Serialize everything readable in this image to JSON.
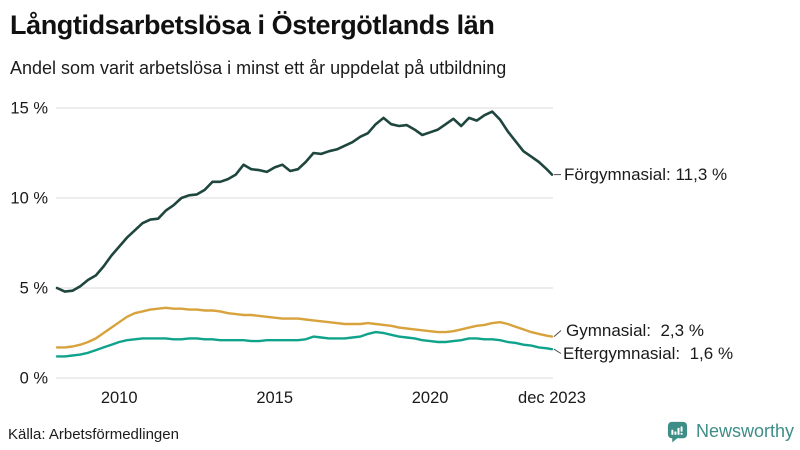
{
  "page": {
    "title": "Långtidsarbetslösa i Östergötlands län",
    "subtitle": "Andel som varit arbetslösa i minst ett år uppdelat på utbildning",
    "source": "Källa: Arbetsförmedlingen",
    "brand": {
      "name": "Newsworthy",
      "icon": "newsworthy-speech-bubble-bar-chart-icon",
      "color": "#3E8D87"
    }
  },
  "colors": {
    "forgymnasial": "#1F463E",
    "gymnasial": "#D8A23C",
    "eftergymnasial": "#10A38C",
    "grid": "#DBDBDB",
    "text": "#1A1A1A",
    "connector": "#4D4D4D"
  },
  "chart_data": {
    "type": "line",
    "title": "Långtidsarbetslösa i Östergötlands län",
    "subtitle": "Andel som varit arbetslösa i minst ett år uppdelat på utbildning",
    "x_unit": "year (quarterly samples of monthly series, last point = dec 2023)",
    "xlim": [
      2008,
      2023.92
    ],
    "ylim": [
      0,
      15.9
    ],
    "grid": "horizontal-only",
    "legend_position": "end-of-line-labels-right",
    "yticks": [
      {
        "v": 0,
        "label": "0 %"
      },
      {
        "v": 5,
        "label": "5 %"
      },
      {
        "v": 10,
        "label": "10 %"
      },
      {
        "v": 15,
        "label": "15 %"
      }
    ],
    "xticks": [
      {
        "v": 2010,
        "label": "2010"
      },
      {
        "v": 2015,
        "label": "2015"
      },
      {
        "v": 2020,
        "label": "2020"
      },
      {
        "v": 2023.92,
        "label": "dec 2023"
      }
    ],
    "x": [
      2008,
      2008.25,
      2008.5,
      2008.75,
      2009,
      2009.25,
      2009.5,
      2009.75,
      2010,
      2010.25,
      2010.5,
      2010.75,
      2011,
      2011.25,
      2011.5,
      2011.75,
      2012,
      2012.25,
      2012.5,
      2012.75,
      2013,
      2013.25,
      2013.5,
      2013.75,
      2014,
      2014.25,
      2014.5,
      2014.75,
      2015,
      2015.25,
      2015.5,
      2015.75,
      2016,
      2016.25,
      2016.5,
      2016.75,
      2017,
      2017.25,
      2017.5,
      2017.75,
      2018,
      2018.25,
      2018.5,
      2018.75,
      2019,
      2019.25,
      2019.5,
      2019.75,
      2020,
      2020.25,
      2020.5,
      2020.75,
      2021,
      2021.25,
      2021.5,
      2021.75,
      2022,
      2022.25,
      2022.5,
      2022.75,
      2023,
      2023.25,
      2023.5,
      2023.75,
      2023.92
    ],
    "series": [
      {
        "name": "Förgymnasial",
        "end_label": "Förgymnasial: 11,3 %",
        "end_value": "11,3 %",
        "color": "#1F463E",
        "values": [
          5.0,
          4.8,
          4.85,
          5.1,
          5.45,
          5.7,
          6.2,
          6.8,
          7.3,
          7.8,
          8.2,
          8.6,
          8.8,
          8.85,
          9.3,
          9.6,
          10.0,
          10.15,
          10.2,
          10.45,
          10.9,
          10.9,
          11.05,
          11.3,
          11.85,
          11.6,
          11.55,
          11.45,
          11.7,
          11.85,
          11.5,
          11.6,
          12.0,
          12.5,
          12.45,
          12.6,
          12.7,
          12.9,
          13.1,
          13.4,
          13.6,
          14.1,
          14.45,
          14.1,
          14.0,
          14.05,
          13.8,
          13.5,
          13.65,
          13.8,
          14.1,
          14.4,
          14.0,
          14.45,
          14.3,
          14.6,
          14.8,
          14.35,
          13.7,
          13.15,
          12.6,
          12.3,
          12.0,
          11.6,
          11.3
        ]
      },
      {
        "name": "Gymnasial",
        "end_label": "Gymnasial:  2,3 %",
        "end_value": "2,3 %",
        "color": "#D8A23C",
        "values": [
          1.7,
          1.7,
          1.75,
          1.85,
          2.0,
          2.2,
          2.5,
          2.8,
          3.1,
          3.4,
          3.6,
          3.7,
          3.8,
          3.85,
          3.9,
          3.85,
          3.85,
          3.8,
          3.8,
          3.75,
          3.75,
          3.7,
          3.6,
          3.55,
          3.5,
          3.5,
          3.45,
          3.4,
          3.35,
          3.3,
          3.3,
          3.3,
          3.25,
          3.2,
          3.15,
          3.1,
          3.05,
          3.0,
          3.0,
          3.0,
          3.05,
          3.0,
          2.95,
          2.9,
          2.8,
          2.75,
          2.7,
          2.65,
          2.6,
          2.55,
          2.55,
          2.6,
          2.7,
          2.8,
          2.9,
          2.95,
          3.05,
          3.1,
          3.0,
          2.85,
          2.7,
          2.55,
          2.45,
          2.35,
          2.3
        ]
      },
      {
        "name": "Eftergymnasial",
        "end_label": "Eftergymnasial:  1,6 %",
        "end_value": "1,6 %",
        "color": "#10A38C",
        "values": [
          1.2,
          1.2,
          1.25,
          1.3,
          1.4,
          1.55,
          1.7,
          1.85,
          2.0,
          2.1,
          2.15,
          2.2,
          2.2,
          2.2,
          2.2,
          2.15,
          2.15,
          2.2,
          2.2,
          2.15,
          2.15,
          2.1,
          2.1,
          2.1,
          2.1,
          2.05,
          2.05,
          2.1,
          2.1,
          2.1,
          2.1,
          2.1,
          2.15,
          2.3,
          2.25,
          2.2,
          2.2,
          2.2,
          2.25,
          2.3,
          2.45,
          2.55,
          2.5,
          2.4,
          2.3,
          2.25,
          2.2,
          2.1,
          2.05,
          2.0,
          2.0,
          2.05,
          2.1,
          2.2,
          2.2,
          2.15,
          2.15,
          2.1,
          2.0,
          1.95,
          1.85,
          1.8,
          1.7,
          1.65,
          1.6
        ]
      }
    ]
  }
}
